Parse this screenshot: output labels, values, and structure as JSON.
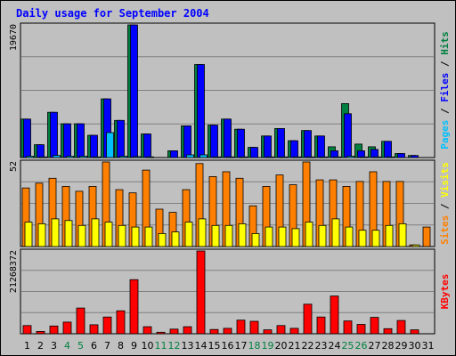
{
  "chart_data": {
    "type": "bar",
    "title": "Daily usage for September 2004",
    "categories": [
      "1",
      "2",
      "3",
      "4",
      "5",
      "6",
      "7",
      "8",
      "9",
      "10",
      "11",
      "12",
      "13",
      "14",
      "15",
      "16",
      "17",
      "18",
      "19",
      "20",
      "21",
      "22",
      "23",
      "24",
      "25",
      "26",
      "27",
      "28",
      "29",
      "30",
      "31"
    ],
    "weekend_days": [
      "4",
      "5",
      "11",
      "12",
      "18",
      "19",
      "25",
      "26"
    ],
    "panels": [
      {
        "id": "hits-files-pages",
        "max_label": "19670",
        "ylim": [
          0,
          19670
        ],
        "right_labels": [
          {
            "text": "Pages",
            "color": "#00c0ff"
          },
          {
            "text": " / ",
            "color": "#000000"
          },
          {
            "text": "Files",
            "color": "#0000ff"
          },
          {
            "text": " / ",
            "color": "#000000"
          },
          {
            "text": "Hits",
            "color": "#008040"
          }
        ],
        "series": [
          {
            "name": "Hits",
            "color": "#008040",
            "values": [
              5700,
              1900,
              6700,
              5000,
              5000,
              3300,
              8700,
              5500,
              19670,
              3500,
              0,
              1000,
              4700,
              13800,
              4800,
              5700,
              4200,
              1500,
              3200,
              4300,
              2500,
              4000,
              3200,
              1600,
              8000,
              2000,
              1600,
              2400,
              600,
              300,
              0
            ]
          },
          {
            "name": "Files",
            "color": "#0000ff",
            "values": [
              5700,
              1900,
              6700,
              5000,
              5000,
              3300,
              8700,
              5500,
              19670,
              3500,
              0,
              1000,
              4700,
              13800,
              4800,
              5700,
              4200,
              1500,
              3200,
              4300,
              2500,
              4000,
              3200,
              1000,
              6500,
              1000,
              1200,
              2400,
              600,
              300,
              0
            ]
          },
          {
            "name": "Pages",
            "color": "#00c0ff",
            "values": [
              200,
              100,
              300,
              200,
              200,
              100,
              3700,
              200,
              150,
              100,
              0,
              50,
              400,
              400,
              100,
              100,
              100,
              50,
              100,
              100,
              100,
              100,
              100,
              100,
              200,
              100,
              100,
              100,
              50,
              0,
              0
            ]
          }
        ]
      },
      {
        "id": "visits-sites",
        "max_label": "52",
        "ylim": [
          0,
          52
        ],
        "right_labels": [
          {
            "text": "Sites",
            "color": "#ff8000"
          },
          {
            "text": " / ",
            "color": "#000000"
          },
          {
            "text": "Visits",
            "color": "#ffff00"
          }
        ],
        "series": [
          {
            "name": "Visits",
            "color": "#ff8000",
            "values": [
              36,
              39,
              42,
              37,
              34,
              37,
              52,
              35,
              33,
              47,
              23,
              21,
              35,
              51,
              43,
              46,
              42,
              25,
              37,
              44,
              38,
              52,
              41,
              41,
              37,
              40,
              46,
              40,
              40,
              1,
              12
            ]
          },
          {
            "name": "Sites",
            "color": "#ffff00",
            "values": [
              15,
              14,
              17,
              16,
              13,
              17,
              15,
              13,
              12,
              12,
              8,
              9,
              15,
              17,
              13,
              13,
              14,
              8,
              12,
              12,
              11,
              15,
              13,
              17,
              12,
              10,
              10,
              13,
              14,
              1,
              0
            ]
          }
        ]
      },
      {
        "id": "kbytes",
        "max_label": "21268372",
        "ylim": [
          0,
          21268372
        ],
        "right_labels": [
          {
            "text": "KBytes",
            "color": "#ff0000"
          }
        ],
        "series": [
          {
            "name": "KBytes",
            "color": "#ff0000",
            "values": [
              2100000,
              600000,
              2000000,
              3000000,
              6600000,
              2300000,
              4300000,
              5900000,
              13900000,
              1800000,
              400000,
              1200000,
              1800000,
              21268372,
              1100000,
              1400000,
              3500000,
              3200000,
              1000000,
              2100000,
              1400000,
              7600000,
              4300000,
              9700000,
              3300000,
              2400000,
              4200000,
              1300000,
              3400000,
              1000000,
              0
            ]
          }
        ]
      }
    ]
  },
  "colors": {
    "background": "#c0c0c0",
    "panel_border": "#000000",
    "gridline": "#808080",
    "title": "#0000ff",
    "weekday_label": "#000000",
    "weekend_label": "#008040"
  }
}
